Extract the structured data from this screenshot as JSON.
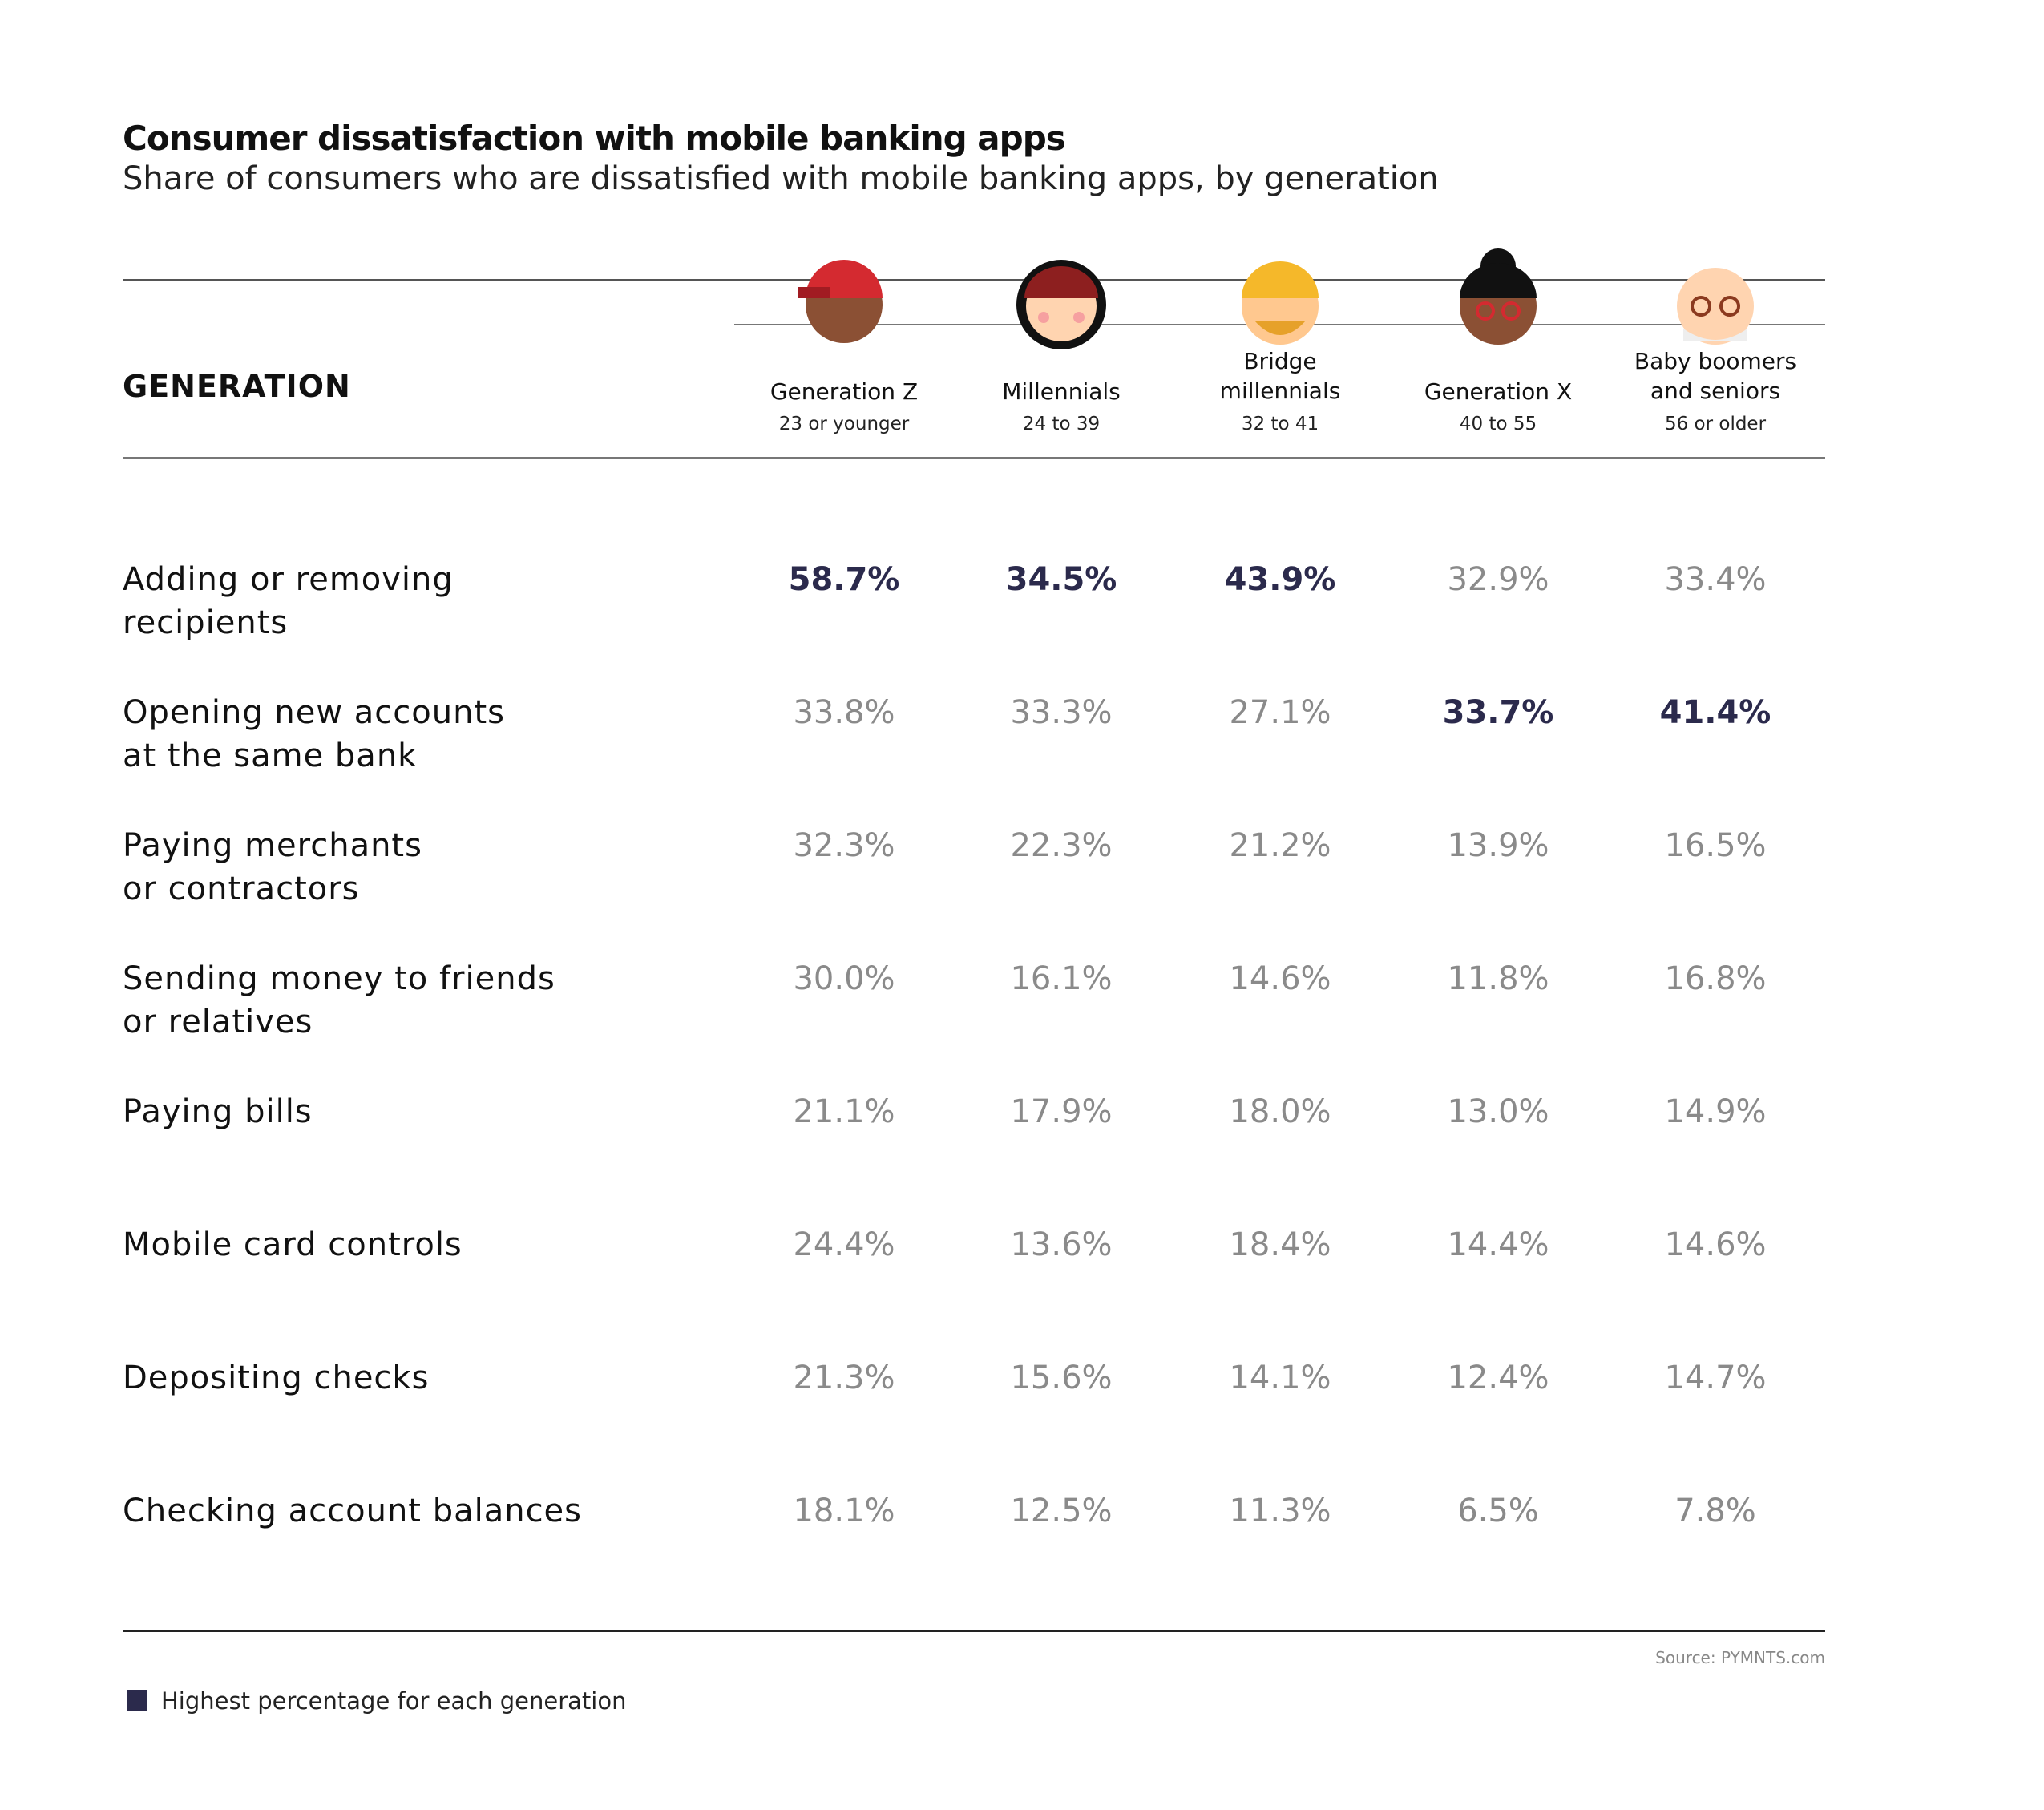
{
  "header": {
    "title": "Consumer dissatisfaction with mobile banking apps",
    "subtitle": "Share of consumers who are dissatisfied with mobile banking apps, by generation"
  },
  "table": {
    "row_header": "GENERATION",
    "columns": [
      {
        "name": "Generation Z",
        "age": "23 or younger"
      },
      {
        "name": "Millennials",
        "age": "24 to 39"
      },
      {
        "name": "Bridge\nmillennials",
        "age": "32 to 41"
      },
      {
        "name": "Generation X",
        "age": "40 to 55"
      },
      {
        "name": "Baby boomers\nand seniors",
        "age": "56 or older"
      }
    ],
    "rows": [
      {
        "label": "Adding or removing\nrecipients",
        "values": [
          "58.7%",
          "34.5%",
          "43.9%",
          "32.9%",
          "33.4%"
        ]
      },
      {
        "label": "Opening new accounts\nat the same bank",
        "values": [
          "33.8%",
          "33.3%",
          "27.1%",
          "33.7%",
          "41.4%"
        ]
      },
      {
        "label": "Paying merchants\nor contractors",
        "values": [
          "32.3%",
          "22.3%",
          "21.2%",
          "13.9%",
          "16.5%"
        ]
      },
      {
        "label": "Sending money to friends\nor relatives",
        "values": [
          "30.0%",
          "16.1%",
          "14.6%",
          "11.8%",
          "16.8%"
        ]
      },
      {
        "label": "Paying bills",
        "values": [
          "21.1%",
          "17.9%",
          "18.0%",
          "13.0%",
          "14.9%"
        ]
      },
      {
        "label": "Mobile card controls",
        "values": [
          "24.4%",
          "13.6%",
          "18.4%",
          "14.4%",
          "14.6%"
        ]
      },
      {
        "label": "Depositing checks",
        "values": [
          "21.3%",
          "15.6%",
          "14.1%",
          "12.4%",
          "14.7%"
        ]
      },
      {
        "label": "Checking account balances",
        "values": [
          "18.1%",
          "12.5%",
          "11.3%",
          "6.5%",
          "7.8%"
        ]
      }
    ],
    "highlight_color": "#2b2a4c",
    "value_color": "#8a8a8a"
  },
  "footer": {
    "source": "Source: PYMNTS.com",
    "legend": "Highest percentage for each generation"
  }
}
